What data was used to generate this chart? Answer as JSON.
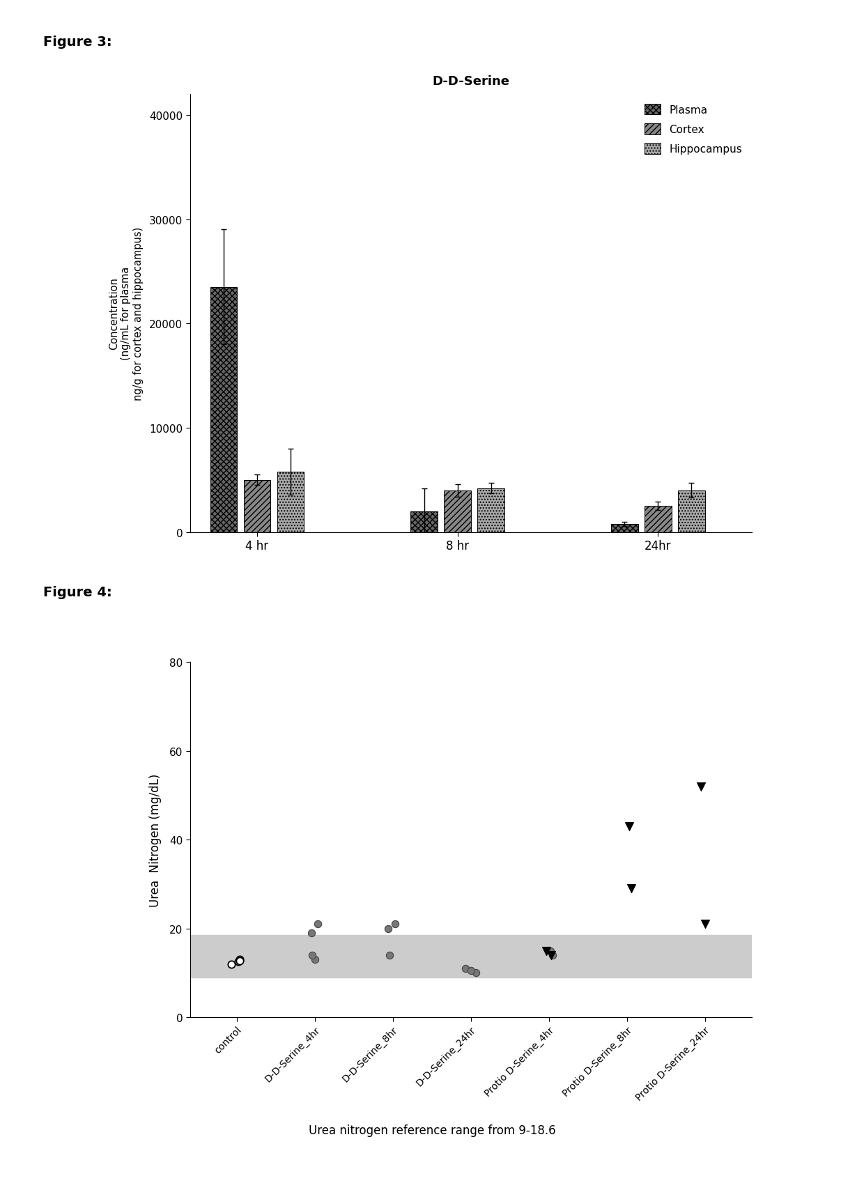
{
  "fig3_title": "D-D-Serine",
  "fig3_groups": [
    "4 hr",
    "8 hr",
    "24hr"
  ],
  "fig3_legend": [
    "Plasma",
    "Cortex",
    "Hippocampus"
  ],
  "fig3_bar_values": [
    [
      23500,
      5000,
      5800
    ],
    [
      2000,
      4000,
      4200
    ],
    [
      800,
      2500,
      4000
    ]
  ],
  "fig3_bar_errors": [
    [
      5500,
      500,
      2200
    ],
    [
      2200,
      600,
      500
    ],
    [
      200,
      400,
      700
    ]
  ],
  "fig3_colors": [
    "#666666",
    "#888888",
    "#aaaaaa"
  ],
  "fig3_hatch": [
    "xxxx",
    "////",
    "...."
  ],
  "fig3_ylabel": "Concentration\n(ng/mL for plasma\nng/g for cortex and hippocampus)",
  "fig3_ylim": [
    0,
    42000
  ],
  "fig3_yticks": [
    0,
    10000,
    20000,
    30000,
    40000
  ],
  "fig4_ylabel": "Urea  Nitrogen (mg/dL)",
  "fig4_xlabels": [
    "control",
    "D-D-Serine_4hr",
    "D-D-Serine_8hr",
    "D-D-Serine_24hr",
    "Protio D-Serine_4hr",
    "Protio D-Serine_8hr",
    "Protio D-Serine_24hr"
  ],
  "fig4_ylim": [
    0,
    80
  ],
  "fig4_yticks": [
    0,
    20,
    40,
    60,
    80
  ],
  "fig4_ref_low": 9,
  "fig4_ref_high": 18.6,
  "fig4_ref_color": "#cccccc",
  "fig4_circle_control": [
    13.0,
    12.0,
    12.5,
    12.8
  ],
  "fig4_circle_dd4": [
    13.0,
    14.0,
    19.0,
    21.0
  ],
  "fig4_circle_dd8": [
    14.0,
    20.0,
    21.0
  ],
  "fig4_circle_dd24": [
    10.0,
    11.0,
    10.5
  ],
  "fig4_circle_proto4": [
    14.0,
    15.0
  ],
  "fig4_triangle_proto4": [
    14.0,
    15.0
  ],
  "fig4_triangle_proto8": [
    29.0,
    43.0
  ],
  "fig4_triangle_proto24": [
    21.0,
    52.0
  ],
  "caption": "Urea nitrogen reference range from 9-18.6",
  "background_color": "#ffffff",
  "fig3_label": "Figure 3:",
  "fig4_label": "Figure 4:"
}
